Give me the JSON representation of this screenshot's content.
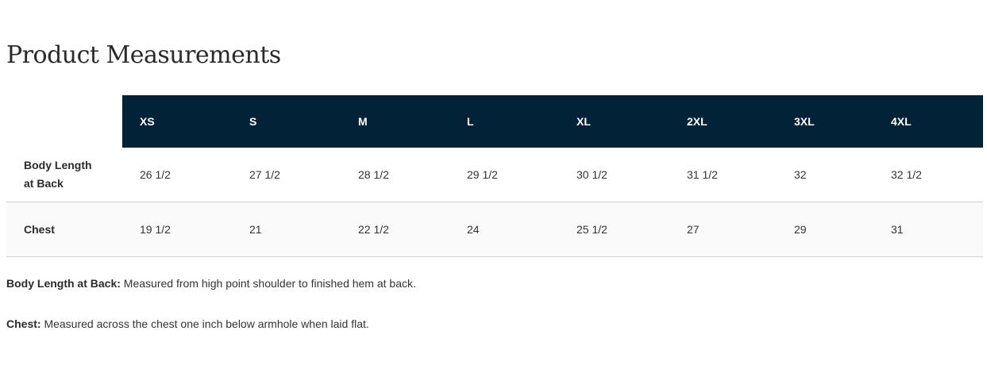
{
  "title": "Product Measurements",
  "table": {
    "headers": [
      "XS",
      "S",
      "M",
      "L",
      "XL",
      "2XL",
      "3XL",
      "4XL"
    ],
    "rows": [
      {
        "label": "Body Length at Back",
        "values": [
          "26 1/2",
          "27 1/2",
          "28 1/2",
          "29 1/2",
          "30 1/2",
          "31 1/2",
          "32",
          "32 1/2"
        ]
      },
      {
        "label": "Chest",
        "values": [
          "19 1/2",
          "21",
          "22 1/2",
          "24",
          "25 1/2",
          "27",
          "29",
          "31"
        ]
      }
    ]
  },
  "notes": [
    {
      "term": "Body Length at Back:",
      "text": " Measured from high point shoulder to finished hem at back."
    },
    {
      "term": "Chest:",
      "text": " Measured across the chest one inch below armhole when laid flat."
    }
  ],
  "colors": {
    "header_bg": "#012237",
    "header_text": "#ffffff",
    "alt_row_bg": "#fafafa"
  }
}
